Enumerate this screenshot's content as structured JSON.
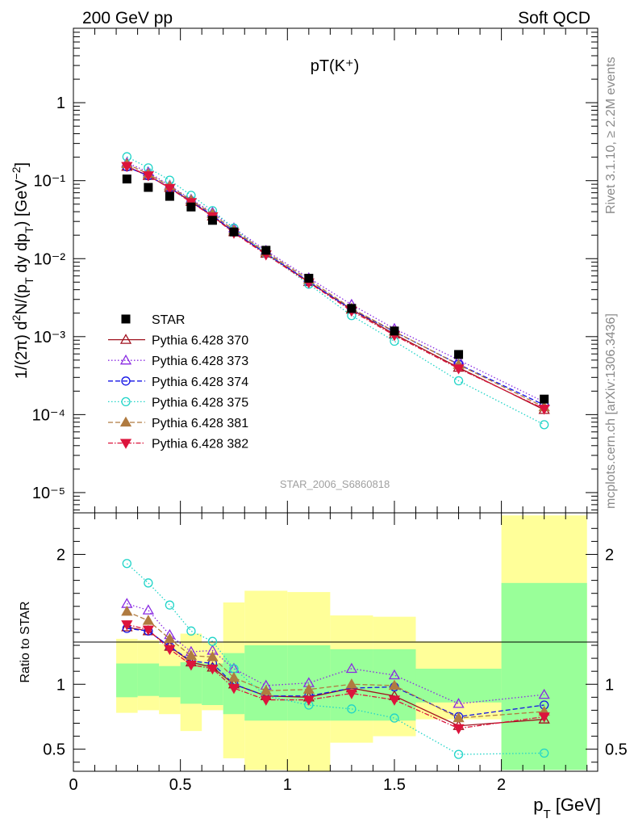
{
  "header": {
    "left": "200 GeV pp",
    "right": "Soft QCD"
  },
  "side_labels": {
    "top": "Rivet 3.1.10, ≥ 2.2M events",
    "bottom": "mcplots.cern.ch [arXiv:1306.3436]"
  },
  "chart_data": {
    "type": "scatter",
    "title": "pT(K⁺)",
    "analysis_id": "STAR_2006_S6860818",
    "x": [
      0.25,
      0.35,
      0.45,
      0.55,
      0.65,
      0.75,
      0.9,
      1.1,
      1.3,
      1.5,
      1.8,
      2.2
    ],
    "xlabel": "p_T [GeV]",
    "xlim": [
      0,
      2.45
    ],
    "xticks": [
      "0",
      "0.5",
      "1",
      "1.5",
      "2"
    ],
    "main": {
      "ylabel": "1/(2π) d²N/(p_T dy dp_T) [GeV⁻²]",
      "yscale": "log",
      "ylim": [
        5.5e-06,
        9
      ],
      "yticks": [
        "10⁻⁵",
        "10⁻⁴",
        "10⁻³",
        "10⁻²",
        "10⁻¹",
        "1"
      ],
      "data": {
        "name": "STAR",
        "values": [
          0.105,
          0.082,
          0.063,
          0.046,
          0.031,
          0.022,
          0.0128,
          0.0056,
          0.0023,
          0.00118,
          0.00059,
          0.000158
        ]
      }
    },
    "ratio": {
      "ylabel": "Ratio to STAR",
      "ylim": [
        0.33,
        2.32
      ],
      "yticks": [
        "0.5",
        "1",
        "2"
      ],
      "bands": [
        {
          "x0": 0.2,
          "x1": 0.3,
          "stat": [
            0.9,
            1.16
          ],
          "syst": [
            0.78,
            1.35
          ]
        },
        {
          "x0": 0.3,
          "x1": 0.4,
          "stat": [
            0.91,
            1.16
          ],
          "syst": [
            0.8,
            1.34
          ]
        },
        {
          "x0": 0.4,
          "x1": 0.5,
          "stat": [
            0.9,
            1.14
          ],
          "syst": [
            0.77,
            1.31
          ]
        },
        {
          "x0": 0.5,
          "x1": 0.6,
          "stat": [
            0.85,
            1.17
          ],
          "syst": [
            0.64,
            1.39
          ]
        },
        {
          "x0": 0.6,
          "x1": 0.7,
          "stat": [
            0.84,
            1.16
          ],
          "syst": [
            0.8,
            1.32
          ]
        },
        {
          "x0": 0.7,
          "x1": 0.8,
          "stat": [
            0.77,
            1.24
          ],
          "syst": [
            0.43,
            1.63
          ]
        },
        {
          "x0": 0.8,
          "x1": 1.0,
          "stat": [
            0.72,
            1.3
          ],
          "syst": [
            0.34,
            1.72
          ]
        },
        {
          "x0": 1.0,
          "x1": 1.2,
          "stat": [
            0.72,
            1.3
          ],
          "syst": [
            0.33,
            1.71
          ]
        },
        {
          "x0": 1.2,
          "x1": 1.4,
          "stat": [
            0.72,
            1.27
          ],
          "syst": [
            0.55,
            1.53
          ]
        },
        {
          "x0": 1.4,
          "x1": 1.6,
          "stat": [
            0.72,
            1.27
          ],
          "syst": [
            0.6,
            1.52
          ]
        },
        {
          "x0": 1.6,
          "x1": 2.0,
          "stat": [
            0.86,
            1.12
          ],
          "syst": [
            0.73,
            1.33
          ]
        },
        {
          "x0": 2.0,
          "x1": 2.4,
          "stat": [
            0.34,
            1.78
          ],
          "syst": [
            0.34,
            2.3
          ]
        }
      ]
    },
    "series": [
      {
        "name": "Pythia 6.428 370",
        "color": "#a0121f",
        "dash": "",
        "marker": "tri-up-open",
        "ratio": [
          1.44,
          1.41,
          1.29,
          1.17,
          1.13,
          1.0,
          0.91,
          0.9,
          0.97,
          0.91,
          0.68,
          0.73
        ]
      },
      {
        "name": "Pythia 6.428 373",
        "color": "#8a2be2",
        "dash": "1.5,2.5",
        "marker": "tri-up-open",
        "ratio": [
          1.62,
          1.57,
          1.38,
          1.25,
          1.26,
          1.12,
          0.99,
          1.01,
          1.12,
          1.07,
          0.85,
          0.92
        ]
      },
      {
        "name": "Pythia 6.428 374",
        "color": "#1414e6",
        "dash": "6,3",
        "marker": "circle-open",
        "ratio": [
          1.43,
          1.41,
          1.29,
          1.18,
          1.16,
          1.0,
          0.91,
          0.91,
          0.97,
          0.98,
          0.75,
          0.84
        ]
      },
      {
        "name": "Pythia 6.428 375",
        "color": "#20d4c8",
        "dash": "1.5,2.5",
        "marker": "circle-open",
        "ratio": [
          1.93,
          1.78,
          1.61,
          1.41,
          1.33,
          1.12,
          0.91,
          0.84,
          0.81,
          0.74,
          0.46,
          0.47
        ]
      },
      {
        "name": "Pythia 6.428 381",
        "color": "#b07b40",
        "dash": "6,3",
        "marker": "tri-up-filled",
        "ratio": [
          1.56,
          1.49,
          1.35,
          1.22,
          1.21,
          1.05,
          0.95,
          0.96,
          1.0,
          0.99,
          0.74,
          0.79
        ]
      },
      {
        "name": "Pythia 6.428 382",
        "color": "#dc143c",
        "dash": "6,2,1.5,2",
        "marker": "tri-down-filled",
        "ratio": [
          1.46,
          1.42,
          1.27,
          1.15,
          1.12,
          0.97,
          0.88,
          0.88,
          0.93,
          0.88,
          0.66,
          0.75
        ]
      }
    ]
  }
}
